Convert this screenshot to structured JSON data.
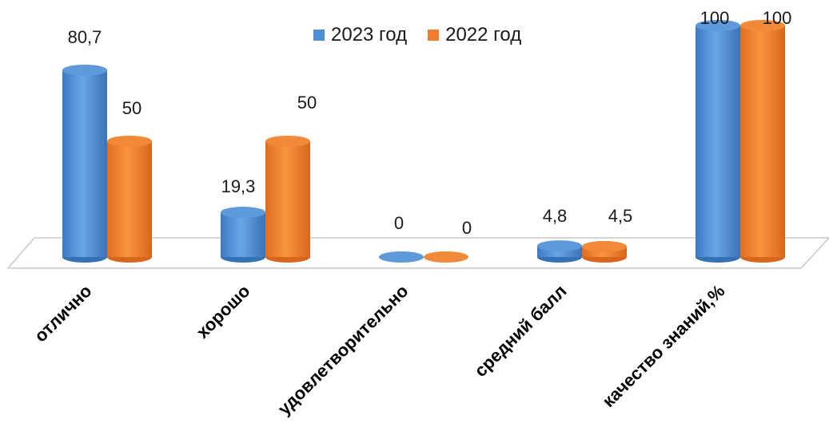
{
  "chart_data": {
    "type": "bar",
    "style": "3d-cylinder",
    "categories": [
      "отлично",
      "хорошо",
      "удовлетворительно",
      "средний балл",
      "качество знаний,%"
    ],
    "series": [
      {
        "name": "2023 год",
        "color": "#4e8fd6",
        "values": [
          80.7,
          19.3,
          0,
          4.8,
          100
        ],
        "labels": [
          "80,7",
          "19,3",
          "0",
          "4,8",
          "100"
        ]
      },
      {
        "name": "2022 год",
        "color": "#ef7f2e",
        "values": [
          50,
          50,
          0,
          4.5,
          100
        ],
        "labels": [
          "50",
          "50",
          "0",
          "4,5",
          "100"
        ]
      }
    ],
    "ylim": [
      0,
      100
    ],
    "legend_position": "top",
    "grid": false
  }
}
